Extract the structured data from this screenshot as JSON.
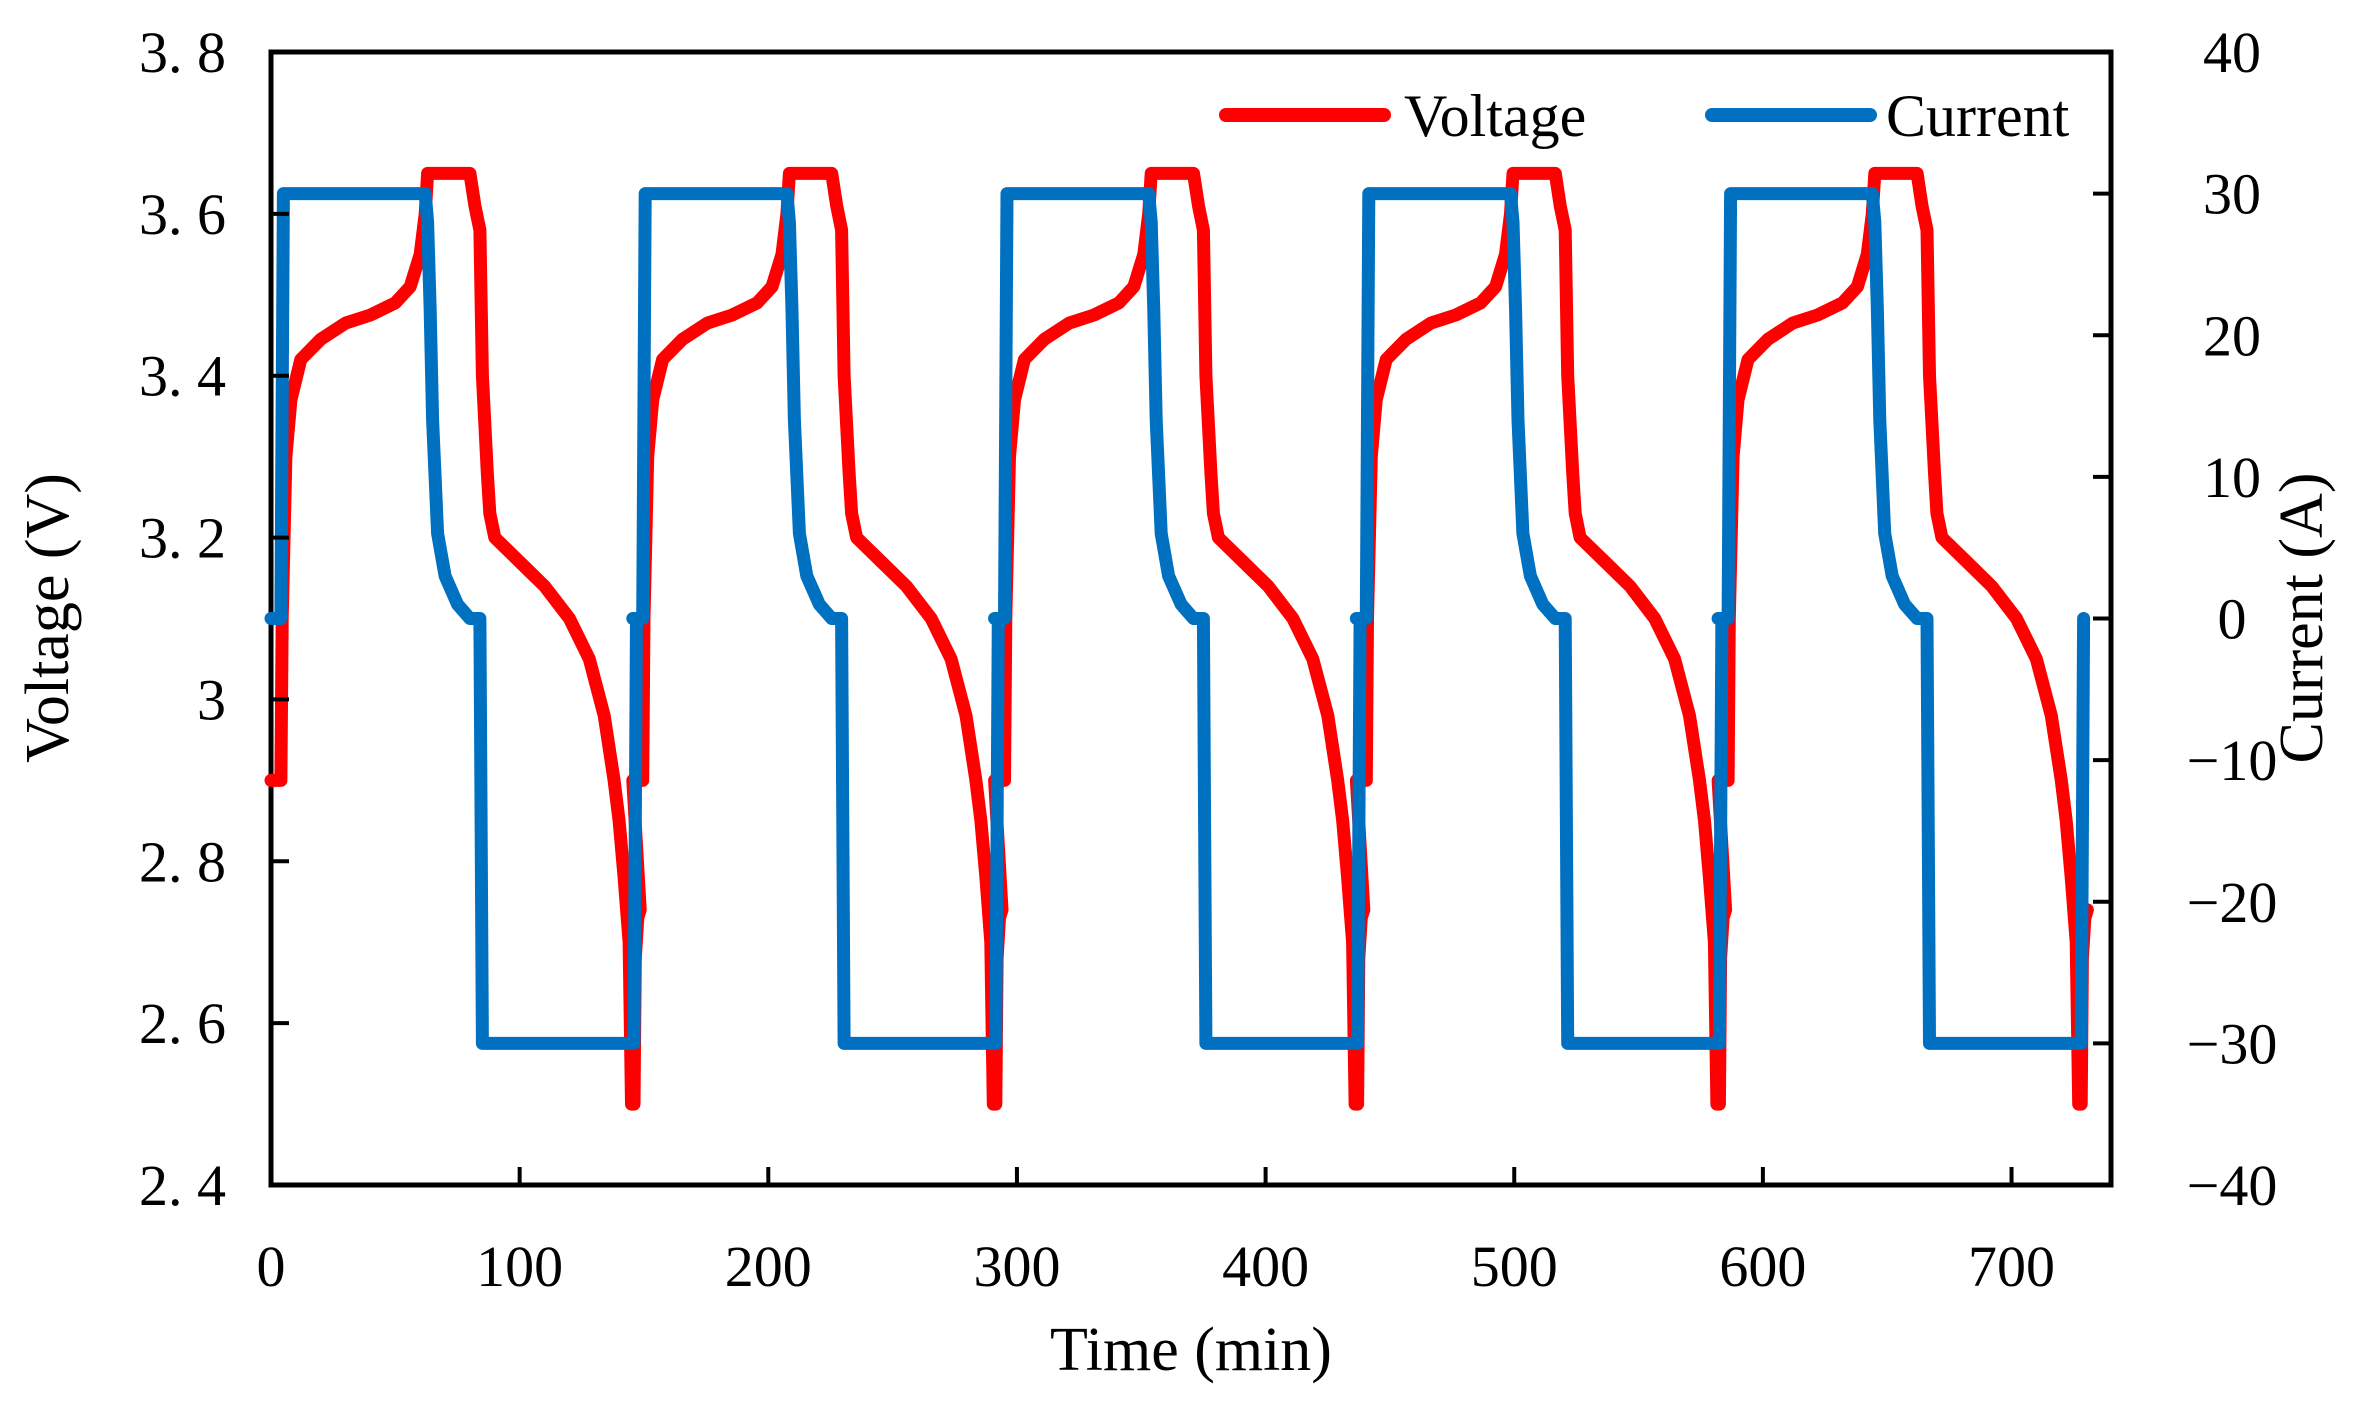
{
  "chart_data": {
    "type": "line",
    "title": "",
    "xlabel": "Time (min)",
    "ylabel": "Voltage (V)",
    "y2label": "Current (A)",
    "xlim": [
      0,
      740
    ],
    "ylim": [
      2.4,
      3.8
    ],
    "y2lim": [
      -40,
      40
    ],
    "xticks": [
      "0",
      "100",
      "200",
      "300",
      "400",
      "500",
      "600",
      "700"
    ],
    "xtick_values": [
      0,
      100,
      200,
      300,
      400,
      500,
      600,
      700
    ],
    "yticks": [
      "2. 4",
      "2. 6",
      "2. 8",
      "3",
      "3. 2",
      "3. 4",
      "3. 6",
      "3. 8"
    ],
    "ytick_values": [
      2.4,
      2.6,
      2.8,
      3.0,
      3.2,
      3.4,
      3.6,
      3.8
    ],
    "y2ticks": [
      "−40",
      "−30",
      "−20",
      "−10",
      "0",
      "10",
      "20",
      "30",
      "40"
    ],
    "y2tick_values": [
      -40,
      -30,
      -20,
      -10,
      0,
      10,
      20,
      30,
      40
    ],
    "legend_position": "top-right",
    "cycle_period_min": 145.5,
    "cycles": 5,
    "series": [
      {
        "name": "Voltage",
        "axis": "left",
        "color": "#ff0000",
        "unit": "V",
        "cycle_profile_time_offset_min": [
          0,
          4,
          4.5,
          6,
          8,
          12,
          20,
          30,
          40,
          50,
          56,
          60,
          62,
          63,
          64,
          70,
          80,
          82,
          84,
          85,
          87,
          88,
          90,
          100,
          110,
          120,
          128,
          134,
          138,
          140,
          142,
          144,
          145,
          146,
          146.5,
          147.5,
          148.5
        ],
        "cycle_profile_values": [
          2.9,
          2.9,
          3.1,
          3.3,
          3.37,
          3.42,
          3.445,
          3.465,
          3.475,
          3.49,
          3.51,
          3.55,
          3.6,
          3.65,
          3.65,
          3.65,
          3.65,
          3.61,
          3.58,
          3.4,
          3.28,
          3.23,
          3.2,
          3.17,
          3.14,
          3.1,
          3.05,
          2.98,
          2.9,
          2.85,
          2.78,
          2.7,
          2.5,
          2.5,
          2.68,
          2.73,
          2.74
        ]
      },
      {
        "name": "Current",
        "axis": "right",
        "color": "#0070c0",
        "unit": "A",
        "cycle_profile_time_offset_min": [
          0,
          4,
          5,
          60,
          62,
          63,
          64,
          65,
          67,
          70,
          75,
          80,
          83,
          84,
          85,
          86,
          146,
          147
        ],
        "cycle_profile_values": [
          0,
          0,
          30,
          30,
          30,
          28,
          22,
          14,
          6,
          3,
          1,
          0,
          0,
          0,
          -30,
          -30,
          -30,
          0
        ]
      }
    ]
  }
}
